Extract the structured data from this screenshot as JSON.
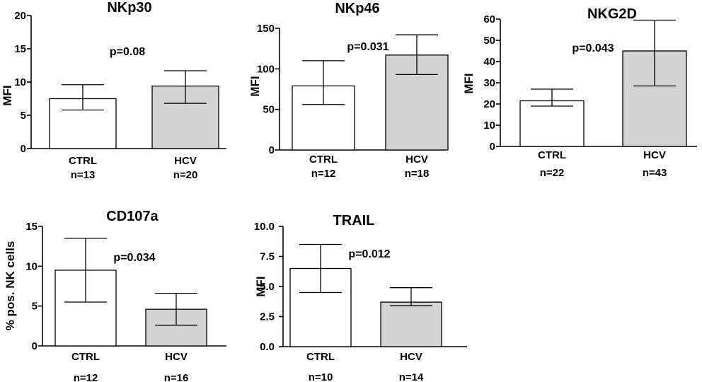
{
  "chart_data": [
    {
      "type": "bar",
      "title": "NKp30",
      "ylabel": "MFI",
      "ylim": [
        0,
        20
      ],
      "yticks": [
        "0",
        "5",
        "10",
        "15",
        "20"
      ],
      "categories": [
        "CTRL",
        "HCV"
      ],
      "n_labels": [
        "n=13",
        "n=20"
      ],
      "values": [
        7.5,
        9.4
      ],
      "err_low": [
        5.8,
        6.8
      ],
      "err_high": [
        9.6,
        11.7
      ],
      "fill": [
        "#ffffff",
        "#d3d3d3"
      ],
      "annotation": "p=0.08"
    },
    {
      "type": "bar",
      "title": "NKp46",
      "ylabel": "MFI",
      "ylim": [
        0,
        150
      ],
      "yticks": [
        "0",
        "50",
        "100",
        "150"
      ],
      "categories": [
        "CTRL",
        "HCV"
      ],
      "n_labels": [
        "n=12",
        "n=18"
      ],
      "values": [
        79,
        117
      ],
      "err_low": [
        56,
        93
      ],
      "err_high": [
        110,
        142
      ],
      "fill": [
        "#ffffff",
        "#d3d3d3"
      ],
      "annotation": "p=0.031"
    },
    {
      "type": "bar",
      "title": "NKG2D",
      "ylabel": "MFI",
      "ylim": [
        0,
        60
      ],
      "yticks": [
        "0",
        "10",
        "20",
        "30",
        "40",
        "50",
        "60"
      ],
      "categories": [
        "CTRL",
        "HCV"
      ],
      "n_labels": [
        "n=22",
        "n=43"
      ],
      "values": [
        21.5,
        45
      ],
      "err_low": [
        19,
        28.5
      ],
      "err_high": [
        27,
        59.5
      ],
      "fill": [
        "#ffffff",
        "#d3d3d3"
      ],
      "annotation": "p=0.043"
    },
    {
      "type": "bar",
      "title": "CD107a",
      "ylabel": "% pos. NK cells",
      "ylim": [
        0,
        15
      ],
      "yticks": [
        "0",
        "5",
        "10",
        "15"
      ],
      "categories": [
        "CTRL",
        "HCV"
      ],
      "n_labels": [
        "n=12",
        "n=16"
      ],
      "values": [
        9.5,
        4.6
      ],
      "err_low": [
        5.5,
        2.6
      ],
      "err_high": [
        13.5,
        6.6
      ],
      "fill": [
        "#ffffff",
        "#d3d3d3"
      ],
      "annotation": "p=0.034"
    },
    {
      "type": "bar",
      "title": "TRAIL",
      "ylabel": "MFI",
      "ylim": [
        0,
        10
      ],
      "yticks": [
        "0.0",
        "2.5",
        "5.0",
        "7.5",
        "10.0"
      ],
      "categories": [
        "CTRL",
        "HCV"
      ],
      "n_labels": [
        "n=10",
        "n=14"
      ],
      "values": [
        6.5,
        3.7
      ],
      "err_low": [
        4.5,
        3.4
      ],
      "err_high": [
        8.5,
        4.9
      ],
      "fill": [
        "#ffffff",
        "#d3d3d3"
      ],
      "annotation": "p=0.012"
    }
  ]
}
